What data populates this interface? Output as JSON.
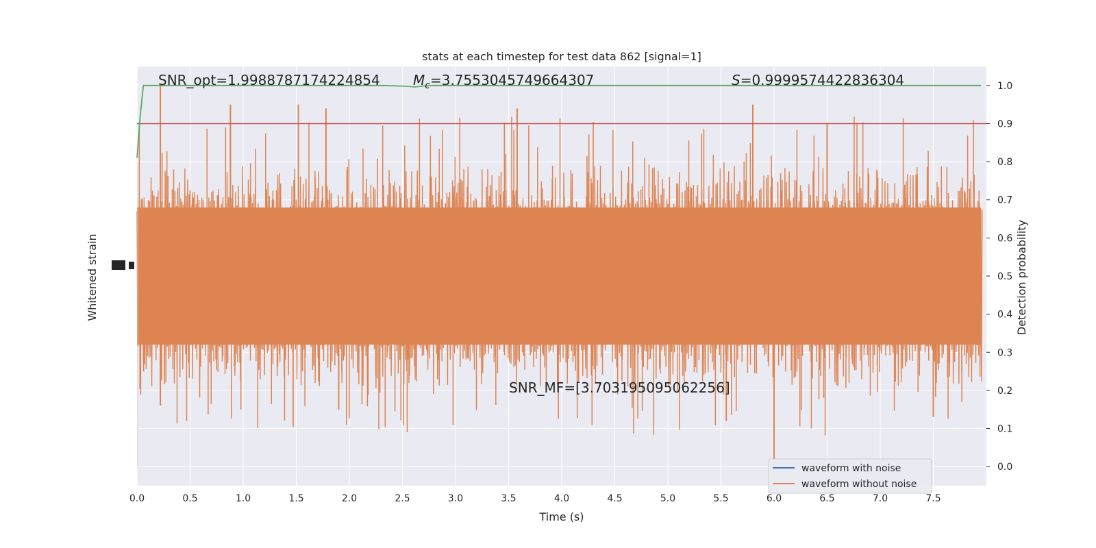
{
  "chart_data": {
    "type": "line",
    "title": "stats at each timestep for test data 862 [signal=1]",
    "xlabel": "Time (s)",
    "ylabel_left": "Whitened strain",
    "ylabel_right": "Detection probability",
    "xlim": [
      0.0,
      8.0
    ],
    "ylim_right": [
      -0.05,
      1.05
    ],
    "x_ticks": [
      "0.0",
      "0.5",
      "1.0",
      "1.5",
      "2.0",
      "2.5",
      "3.0",
      "3.5",
      "4.0",
      "4.5",
      "5.0",
      "5.5",
      "6.0",
      "6.5",
      "7.0",
      "7.5"
    ],
    "y_ticks_right": [
      "0.0",
      "0.1",
      "0.2",
      "0.3",
      "0.4",
      "0.5",
      "0.6",
      "0.7",
      "0.8",
      "0.9",
      "1.0"
    ],
    "grid": true,
    "threshold": 0.9,
    "annotations": {
      "snr_opt": "SNR_opt=1.9988787174224854",
      "mc_prefix": "M",
      "mc_sub": "c",
      "mc_value": "=3.7553045749664307",
      "s_prefix": "S",
      "s_value": "=0.9999574422836304",
      "snr_mf": "SNR_MF=[3.703195095062256]"
    },
    "series": [
      {
        "name": "waveform with noise",
        "color": "#4c72b0"
      },
      {
        "name": "waveform without noise",
        "color": "#dd8452"
      },
      {
        "color": "#55a868",
        "points": [
          [
            0.0,
            0.81
          ],
          [
            0.03,
            0.92
          ],
          [
            0.06,
            1.0
          ],
          [
            0.5,
            1.0
          ],
          [
            1.0,
            1.0
          ],
          [
            1.5,
            1.0
          ],
          [
            2.0,
            1.0
          ],
          [
            2.3,
            1.0
          ],
          [
            2.55,
            0.998
          ],
          [
            2.62,
            0.996
          ],
          [
            2.7,
            0.999
          ],
          [
            2.8,
            1.0
          ],
          [
            3.5,
            1.0
          ],
          [
            4.0,
            1.0
          ],
          [
            5.0,
            1.0
          ],
          [
            6.0,
            1.0
          ],
          [
            7.0,
            1.0
          ],
          [
            7.95,
            1.0
          ]
        ]
      },
      {
        "color": "#c44e52",
        "points": [
          [
            0.0,
            0.9
          ],
          [
            8.0,
            0.9
          ]
        ]
      }
    ],
    "noise_band": {
      "center": 0.5,
      "core_halfwidth": 0.2,
      "color": "#dd8452"
    },
    "spikes_up": [
      [
        0.22,
        1.0
      ],
      [
        0.88,
        0.95
      ],
      [
        1.52,
        0.95
      ],
      [
        1.78,
        0.94
      ],
      [
        3.58,
        0.94
      ],
      [
        5.8,
        0.95
      ],
      [
        6.5,
        0.9
      ]
    ],
    "spikes_down": [
      [
        0.22,
        0.16
      ],
      [
        6.0,
        0.02
      ],
      [
        5.55,
        0.12
      ],
      [
        7.5,
        0.13
      ],
      [
        1.9,
        0.15
      ]
    ],
    "legend": {
      "placement": "lower-right"
    }
  }
}
